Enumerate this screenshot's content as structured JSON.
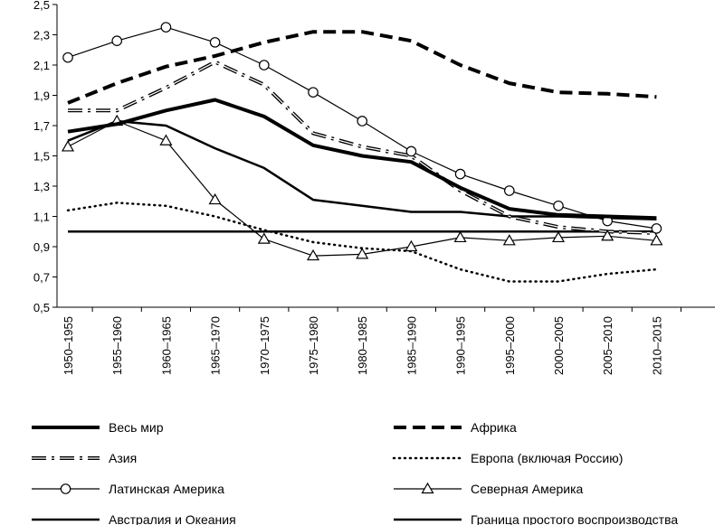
{
  "chart_data": {
    "type": "line",
    "title": "",
    "xlabel": "",
    "ylabel": "",
    "ylim": [
      0.5,
      2.5
    ],
    "yticks": [
      "0,5",
      "0,7",
      "0,9",
      "1,1",
      "1,3",
      "1,5",
      "1,7",
      "1,9",
      "2,1",
      "2,3",
      "2,5"
    ],
    "categories": [
      "1950–1955",
      "1955–1960",
      "1960–1965",
      "1965–1970",
      "1970–1975",
      "1975–1980",
      "1980–1985",
      "1985–1990",
      "1990–1995",
      "1995–2000",
      "2000–2005",
      "2005–2010",
      "2010–2015"
    ],
    "legend_position": "bottom",
    "grid": false,
    "series": [
      {
        "name": "Весь мир",
        "style": "thick-solid",
        "values": [
          1.66,
          1.71,
          1.8,
          1.87,
          1.76,
          1.57,
          1.5,
          1.46,
          1.29,
          1.15,
          1.11,
          1.1,
          1.09
        ]
      },
      {
        "name": "Африка",
        "style": "thick-dashed",
        "values": [
          1.85,
          1.98,
          2.09,
          2.16,
          2.25,
          2.32,
          2.32,
          2.26,
          2.1,
          1.98,
          1.92,
          1.91,
          1.89
        ]
      },
      {
        "name": "Азия",
        "style": "double-dashdot",
        "values": [
          1.8,
          1.8,
          1.95,
          2.12,
          1.97,
          1.65,
          1.56,
          1.5,
          1.27,
          1.1,
          1.03,
          1.0,
          0.99
        ]
      },
      {
        "name": "Европа (включая Россию)",
        "style": "dotted",
        "values": [
          1.14,
          1.19,
          1.17,
          1.1,
          1.01,
          0.93,
          0.89,
          0.87,
          0.75,
          0.67,
          0.67,
          0.72,
          0.75
        ]
      },
      {
        "name": "Латинская Америка",
        "style": "circle-markers",
        "values": [
          2.15,
          2.26,
          2.35,
          2.25,
          2.1,
          1.92,
          1.73,
          1.53,
          1.38,
          1.27,
          1.17,
          1.07,
          1.02
        ]
      },
      {
        "name": "Северная Америка",
        "style": "triangle-markers",
        "values": [
          1.56,
          1.73,
          1.6,
          1.21,
          0.95,
          0.84,
          0.85,
          0.9,
          0.96,
          0.94,
          0.96,
          0.97,
          0.94
        ]
      },
      {
        "name": "Австралия и Океания",
        "style": "medium-solid",
        "values": [
          1.6,
          1.73,
          1.7,
          1.55,
          1.42,
          1.21,
          1.17,
          1.13,
          1.13,
          1.1,
          1.1,
          1.09,
          1.08
        ]
      },
      {
        "name": "Граница простого воспроизводства",
        "style": "medium-solid-flat",
        "values": [
          1.0,
          1.0,
          1.0,
          1.0,
          1.0,
          1.0,
          1.0,
          1.0,
          1.0,
          1.0,
          1.0,
          1.0,
          1.0
        ]
      }
    ]
  }
}
